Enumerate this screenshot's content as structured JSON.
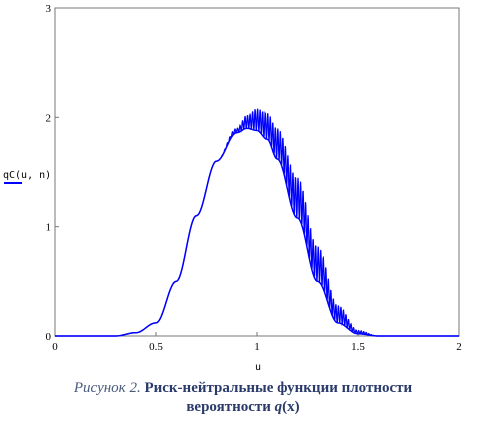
{
  "chart_data": {
    "type": "line",
    "xlabel": "u",
    "ylabel": "qC(u, n)",
    "xlim": [
      0,
      2
    ],
    "ylim": [
      0,
      3
    ],
    "x_ticks": [
      0,
      0.5,
      1,
      1.5,
      2
    ],
    "x_tick_labels": [
      "0",
      "0.5",
      "1",
      "1.5",
      "2"
    ],
    "y_ticks": [
      0,
      1,
      2,
      3
    ],
    "y_tick_labels": [
      "0",
      "1",
      "2",
      "3"
    ],
    "grid": false,
    "line_color": "#0000ff",
    "series": [
      {
        "lower_envelope": {
          "x": [
            0,
            0.3,
            0.4,
            0.5,
            0.6,
            0.7,
            0.8,
            0.9,
            0.95,
            1.0,
            1.05,
            1.1,
            1.2,
            1.3,
            1.4,
            1.5,
            1.6,
            2.0
          ],
          "y": [
            0,
            0,
            0.03,
            0.12,
            0.5,
            1.1,
            1.6,
            1.86,
            1.9,
            1.88,
            1.8,
            1.62,
            1.08,
            0.5,
            0.12,
            0.02,
            0,
            0
          ]
        },
        "upper_envelope": {
          "x": [
            0,
            0.3,
            0.4,
            0.5,
            0.6,
            0.7,
            0.8,
            0.9,
            0.95,
            1.0,
            1.05,
            1.1,
            1.2,
            1.3,
            1.4,
            1.5,
            1.6,
            2.0
          ],
          "y": [
            0,
            0,
            0.03,
            0.12,
            0.5,
            1.1,
            1.6,
            1.9,
            2.02,
            2.08,
            2.04,
            1.9,
            1.45,
            0.82,
            0.28,
            0.05,
            0,
            0
          ]
        }
      }
    ]
  },
  "caption": {
    "prefix": "Рисунок 2.",
    "text_line1": "Риск-нейтральные функции плотности",
    "text_line2": "вероятности",
    "variable": "q",
    "variable_arg": "(x)"
  }
}
